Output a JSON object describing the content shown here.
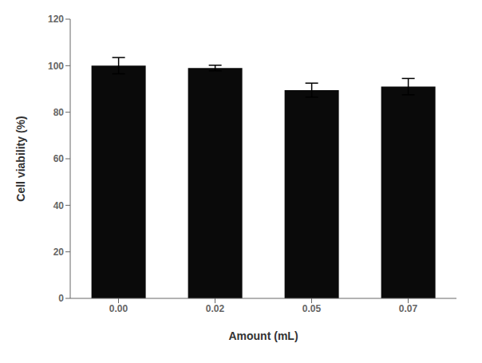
{
  "chart_data": {
    "type": "bar",
    "categories": [
      "0.00",
      "0.02",
      "0.05",
      "0.07"
    ],
    "values": [
      100.0,
      99.0,
      89.5,
      91.0
    ],
    "errors": [
      3.5,
      1.2,
      3.0,
      3.5
    ],
    "color": "#0a0a0a",
    "xlabel": "Amount (mL)",
    "ylabel": "Cell viability (%)",
    "ylim": [
      0,
      120
    ],
    "yticks": [
      0,
      20,
      40,
      60,
      80,
      100,
      120
    ],
    "grid": false
  }
}
